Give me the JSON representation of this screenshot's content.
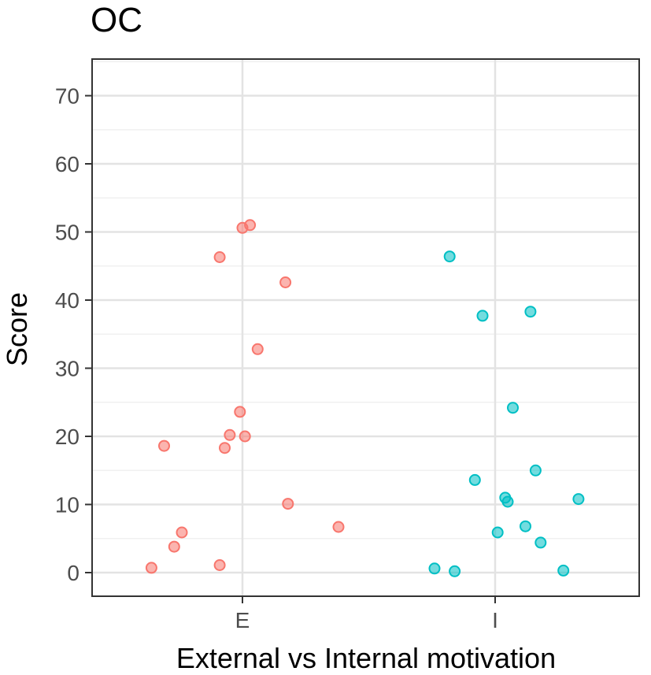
{
  "chart_data": {
    "type": "scatter",
    "title": "OC",
    "xlabel": "External vs Internal motivation",
    "ylabel": "Score",
    "categories": [
      "E",
      "I"
    ],
    "ylim": [
      -3,
      73
    ],
    "yticks": [
      0,
      10,
      20,
      30,
      40,
      50,
      60,
      70
    ],
    "grid": true,
    "colors": {
      "E": "#F8766D",
      "I": "#00BFC4"
    },
    "series": [
      {
        "category": "E",
        "points": [
          {
            "x": -0.36,
            "y": 0.7
          },
          {
            "x": -0.27,
            "y": 3.8
          },
          {
            "x": -0.24,
            "y": 5.9
          },
          {
            "x": -0.31,
            "y": 18.6
          },
          {
            "x": -0.09,
            "y": 1.1
          },
          {
            "x": -0.07,
            "y": 18.3
          },
          {
            "x": -0.05,
            "y": 20.2
          },
          {
            "x": -0.01,
            "y": 23.6
          },
          {
            "x": 0.01,
            "y": 20.0
          },
          {
            "x": 0.06,
            "y": 32.8
          },
          {
            "x": -0.09,
            "y": 46.3
          },
          {
            "x": 0.0,
            "y": 50.6
          },
          {
            "x": 0.03,
            "y": 51.0
          },
          {
            "x": 0.17,
            "y": 42.6
          },
          {
            "x": 0.18,
            "y": 10.1
          },
          {
            "x": 0.38,
            "y": 6.7
          }
        ]
      },
      {
        "category": "I",
        "points": [
          {
            "x": -0.24,
            "y": 0.6
          },
          {
            "x": -0.16,
            "y": 0.2
          },
          {
            "x": -0.18,
            "y": 46.4
          },
          {
            "x": -0.08,
            "y": 13.6
          },
          {
            "x": -0.05,
            "y": 37.7
          },
          {
            "x": 0.01,
            "y": 5.9
          },
          {
            "x": 0.04,
            "y": 11.0
          },
          {
            "x": 0.05,
            "y": 10.4
          },
          {
            "x": 0.07,
            "y": 24.2
          },
          {
            "x": 0.12,
            "y": 6.8
          },
          {
            "x": 0.14,
            "y": 38.3
          },
          {
            "x": 0.16,
            "y": 15.0
          },
          {
            "x": 0.18,
            "y": 4.4
          },
          {
            "x": 0.27,
            "y": 0.3
          },
          {
            "x": 0.33,
            "y": 10.8
          }
        ]
      }
    ]
  }
}
